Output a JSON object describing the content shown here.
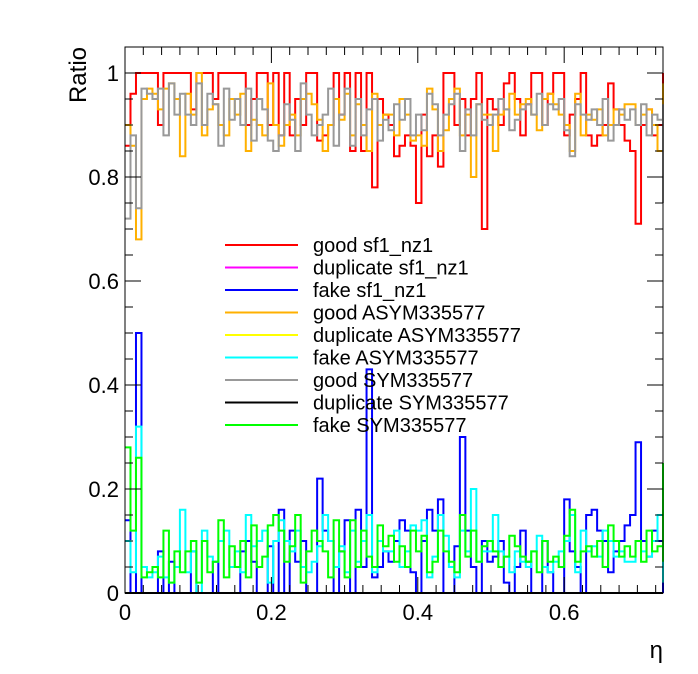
{
  "chart_data": {
    "type": "line",
    "style": "step-histogram",
    "title": "",
    "xlabel": "η",
    "ylabel": "Ratio",
    "xlim": [
      0,
      0.735
    ],
    "ylim": [
      0,
      1.05
    ],
    "x_ticks": [
      "0",
      "0.2",
      "0.4",
      "0.6"
    ],
    "y_ticks": [
      "0",
      "0.2",
      "0.4",
      "0.6",
      "0.8",
      "1"
    ],
    "grid": false,
    "legend_position": "center",
    "bin_width": 0.0075,
    "series": [
      {
        "name": "good sf1_nz1",
        "color": "#ff0000",
        "values": [
          0.86,
          0.96,
          1.0,
          1.0,
          1.0,
          1.0,
          0.9,
          1.0,
          1.0,
          1.0,
          1.0,
          1.0,
          0.93,
          1.0,
          1.0,
          1.0,
          0.95,
          1.0,
          1.0,
          1.0,
          1.0,
          1.0,
          0.9,
          0.95,
          1.0,
          1.0,
          0.9,
          1.0,
          0.88,
          1.0,
          0.88,
          0.95,
          0.9,
          1.0,
          1.0,
          0.87,
          0.88,
          0.9,
          1.0,
          0.92,
          1.0,
          0.85,
          1.0,
          0.85,
          1.0,
          0.78,
          0.95,
          0.92,
          0.9,
          0.84,
          0.86,
          0.88,
          0.86,
          0.75,
          0.92,
          0.84,
          0.88,
          0.82,
          1.0,
          1.0,
          0.9,
          0.95,
          0.88,
          0.95,
          1.0,
          0.7,
          0.95,
          0.93,
          0.9,
          0.98,
          1.0,
          0.95,
          0.88,
          0.94,
          1.0,
          1.0,
          0.9,
          0.96,
          1.0,
          1.0,
          0.88,
          0.92,
          0.95,
          1.0,
          0.88,
          0.86,
          0.88,
          0.9,
          0.98,
          0.93,
          0.9,
          0.87,
          0.85,
          0.71,
          0.9,
          0.93,
          0.88,
          0.9,
          1.0,
          1.0,
          0.94,
          0.88,
          0.97,
          1.0,
          0.9,
          0.92,
          0.94,
          0.95,
          0.88
        ]
      },
      {
        "name": "duplicate sf1_nz1",
        "color": "#ff00ff",
        "values": [
          0
        ]
      },
      {
        "name": "fake sf1_nz1",
        "color": "#0000ff",
        "values": [
          0.14,
          0.0,
          0.5,
          0.0,
          0.0,
          0.0,
          0.08,
          0.0,
          0.06,
          0.0,
          0.0,
          0.0,
          0.08,
          0.0,
          0.0,
          0.0,
          0.06,
          0.0,
          0.0,
          0.0,
          0.0,
          0.08,
          0.1,
          0.06,
          0.0,
          0.0,
          0.09,
          0.0,
          0.16,
          0.0,
          0.12,
          0.06,
          0.1,
          0.0,
          0.0,
          0.22,
          0.12,
          0.1,
          0.0,
          0.08,
          0.14,
          0.0,
          0.16,
          0.05,
          0.43,
          0.03,
          0.05,
          0.08,
          0.06,
          0.1,
          0.14,
          0.12,
          0.04,
          0.0,
          0.1,
          0.16,
          0.12,
          0.18,
          0.0,
          0.0,
          0.09,
          0.3,
          0.12,
          0.05,
          0.0,
          0.1,
          0.06,
          0.07,
          0.1,
          0.02,
          0.0,
          0.05,
          0.12,
          0.06,
          0.0,
          0.0,
          0.1,
          0.04,
          0.0,
          0.0,
          0.18,
          0.08,
          0.05,
          0.0,
          0.15,
          0.16,
          0.12,
          0.1,
          0.04,
          0.08,
          0.1,
          0.13,
          0.15,
          0.29,
          0.1,
          0.07,
          0.12,
          0.1,
          0.0,
          0.0,
          0.06,
          0.14,
          0.04,
          0.0,
          0.1,
          0.08,
          0.06,
          0.05,
          0.12
        ]
      },
      {
        "name": "good ASYM335577",
        "color": "#ffb000",
        "values": [
          0.9,
          0.86,
          0.68,
          0.95,
          0.97,
          0.96,
          0.93,
          0.97,
          0.98,
          0.95,
          0.84,
          0.96,
          0.92,
          1.0,
          0.88,
          0.93,
          0.94,
          0.9,
          0.88,
          0.95,
          0.92,
          0.96,
          0.85,
          0.91,
          0.9,
          0.88,
          0.98,
          0.9,
          0.86,
          0.9,
          0.92,
          0.88,
          0.95,
          0.96,
          0.94,
          0.91,
          0.85,
          0.9,
          0.95,
          0.91,
          0.96,
          0.88,
          0.94,
          0.9,
          0.85,
          0.96,
          0.9,
          0.92,
          0.92,
          0.88,
          0.95,
          0.92,
          0.87,
          0.88,
          0.86,
          0.97,
          0.93,
          0.85,
          0.89,
          0.95,
          0.97,
          0.88,
          0.92,
          0.8,
          0.94,
          0.92,
          0.92,
          0.85,
          0.92,
          0.93,
          0.96,
          0.92,
          0.94,
          0.95,
          0.92,
          0.89,
          0.95,
          0.96,
          0.94,
          0.92,
          0.9,
          0.85,
          0.96,
          0.88,
          0.92,
          0.91,
          0.93,
          0.88,
          0.9,
          0.93,
          0.92,
          0.94,
          0.94,
          0.9,
          0.92,
          0.93,
          0.9,
          0.85,
          0.96,
          0.9,
          0.88,
          0.93,
          0.98,
          0.8,
          0.85,
          0.92,
          0.9,
          0.75,
          0.9
        ]
      },
      {
        "name": "duplicate ASYM335577",
        "color": "#ffff00",
        "values": [
          0
        ]
      },
      {
        "name": "fake ASYM335577",
        "color": "#00ffff",
        "values": [
          0.1,
          0.04,
          0.32,
          0.05,
          0.03,
          0.04,
          0.07,
          0.03,
          0.02,
          0.05,
          0.16,
          0.04,
          0.08,
          0.0,
          0.12,
          0.07,
          0.06,
          0.1,
          0.12,
          0.05,
          0.08,
          0.04,
          0.15,
          0.09,
          0.1,
          0.12,
          0.02,
          0.1,
          0.14,
          0.1,
          0.08,
          0.12,
          0.05,
          0.04,
          0.06,
          0.09,
          0.15,
          0.1,
          0.05,
          0.09,
          0.04,
          0.12,
          0.06,
          0.1,
          0.15,
          0.04,
          0.1,
          0.08,
          0.08,
          0.12,
          0.05,
          0.08,
          0.13,
          0.12,
          0.14,
          0.03,
          0.07,
          0.15,
          0.11,
          0.05,
          0.03,
          0.12,
          0.08,
          0.2,
          0.06,
          0.08,
          0.08,
          0.15,
          0.08,
          0.07,
          0.04,
          0.08,
          0.06,
          0.05,
          0.08,
          0.11,
          0.05,
          0.04,
          0.06,
          0.08,
          0.1,
          0.15,
          0.04,
          0.12,
          0.08,
          0.09,
          0.07,
          0.12,
          0.1,
          0.07,
          0.08,
          0.06,
          0.06,
          0.1,
          0.08,
          0.07,
          0.1,
          0.15,
          0.04,
          0.1,
          0.12,
          0.07,
          0.02,
          0.2,
          0.15,
          0.08,
          0.1,
          0.25,
          0.1
        ]
      },
      {
        "name": "good SYM335577",
        "color": "#999999",
        "values": [
          0.72,
          0.88,
          0.74,
          0.97,
          0.96,
          0.95,
          0.97,
          0.88,
          0.98,
          0.92,
          0.96,
          0.92,
          0.9,
          0.98,
          0.9,
          0.96,
          0.94,
          0.86,
          0.97,
          0.91,
          0.95,
          0.9,
          0.97,
          0.87,
          0.95,
          0.93,
          0.87,
          0.85,
          0.88,
          0.94,
          0.91,
          0.85,
          0.98,
          0.92,
          0.88,
          0.9,
          0.92,
          0.97,
          0.86,
          0.92,
          0.97,
          0.86,
          0.95,
          0.88,
          0.93,
          0.95,
          0.87,
          0.91,
          0.89,
          0.94,
          0.91,
          0.95,
          0.88,
          0.92,
          0.89,
          0.96,
          0.94,
          0.88,
          0.92,
          0.94,
          0.96,
          0.85,
          0.93,
          0.88,
          0.94,
          0.91,
          0.9,
          0.92,
          0.95,
          0.93,
          0.89,
          0.91,
          0.93,
          0.94,
          0.92,
          0.96,
          0.9,
          0.94,
          0.93,
          0.95,
          0.89,
          0.84,
          0.94,
          0.92,
          0.91,
          0.93,
          0.9,
          0.95,
          0.87,
          0.9,
          0.93,
          0.91,
          0.93,
          0.9,
          0.94,
          0.88,
          0.92,
          0.91,
          0.94,
          0.9,
          0.92,
          0.86,
          0.93,
          0.91,
          0.89,
          0.93,
          0.9,
          0.92,
          0.75
        ]
      },
      {
        "name": "duplicate SYM335577",
        "color": "#000000",
        "values": [
          0
        ]
      },
      {
        "name": "fake SYM335577",
        "color": "#00ff00",
        "values": [
          0.28,
          0.12,
          0.26,
          0.03,
          0.04,
          0.05,
          0.03,
          0.12,
          0.02,
          0.08,
          0.04,
          0.08,
          0.1,
          0.02,
          0.1,
          0.04,
          0.06,
          0.14,
          0.03,
          0.09,
          0.05,
          0.1,
          0.03,
          0.13,
          0.05,
          0.07,
          0.13,
          0.15,
          0.12,
          0.06,
          0.09,
          0.15,
          0.02,
          0.08,
          0.12,
          0.1,
          0.08,
          0.03,
          0.14,
          0.08,
          0.03,
          0.14,
          0.05,
          0.12,
          0.07,
          0.05,
          0.13,
          0.09,
          0.11,
          0.06,
          0.09,
          0.05,
          0.12,
          0.08,
          0.11,
          0.04,
          0.06,
          0.12,
          0.08,
          0.06,
          0.04,
          0.15,
          0.07,
          0.12,
          0.06,
          0.09,
          0.1,
          0.08,
          0.05,
          0.07,
          0.11,
          0.09,
          0.07,
          0.06,
          0.08,
          0.04,
          0.1,
          0.06,
          0.07,
          0.05,
          0.11,
          0.16,
          0.06,
          0.08,
          0.09,
          0.07,
          0.1,
          0.05,
          0.13,
          0.1,
          0.07,
          0.09,
          0.07,
          0.1,
          0.06,
          0.12,
          0.08,
          0.09,
          0.06,
          0.1,
          0.08,
          0.14,
          0.07,
          0.09,
          0.11,
          0.07,
          0.1,
          0.08,
          0.25
        ]
      }
    ]
  }
}
